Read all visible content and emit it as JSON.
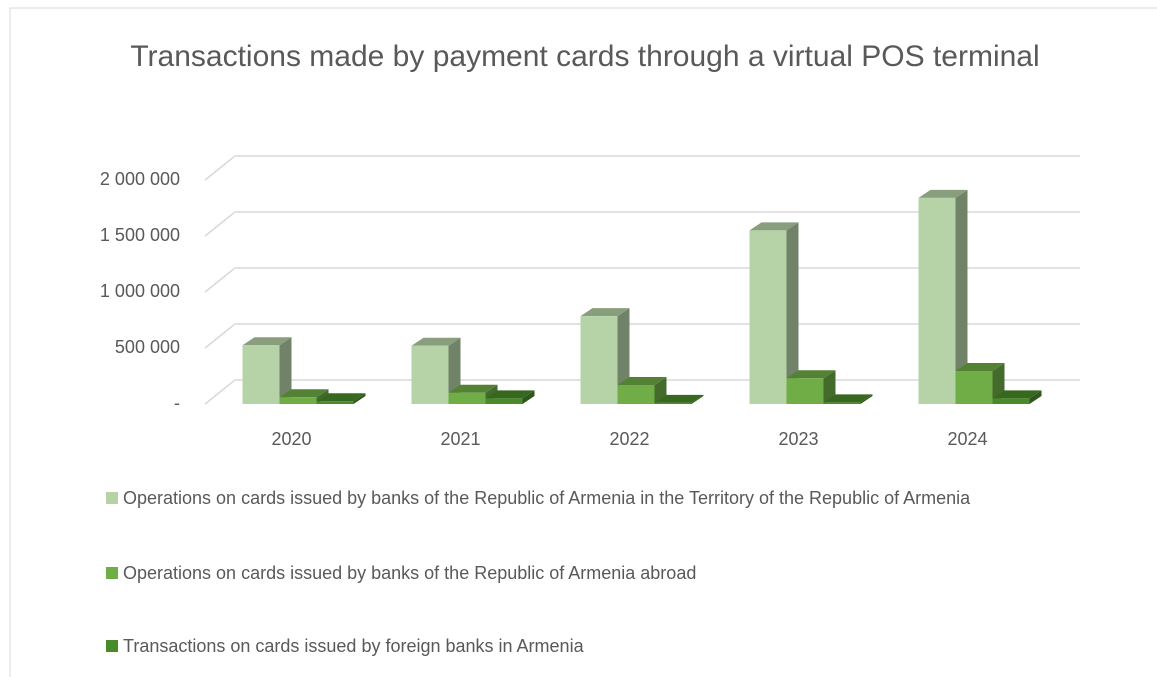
{
  "chart_data": {
    "type": "bar3d",
    "title": "Transactions made by payment cards through a virtual POS terminal",
    "categories": [
      "2020",
      "2021",
      "2022",
      "2023",
      "2024"
    ],
    "series": [
      {
        "name": "Operations on cards issued by banks of the Republic of Armenia in the Territory of the Republic of Armenia",
        "color": "#b5d3a7",
        "values": [
          525000,
          520000,
          785000,
          1550000,
          1840000
        ]
      },
      {
        "name": "Operations on cards issued by banks of the Republic of Armenia abroad",
        "color": "#70ad47",
        "values": [
          60000,
          100000,
          170000,
          230000,
          295000
        ]
      },
      {
        "name": "Transactions on cards issued by foreign banks in Armenia",
        "color": "#4b8a2b",
        "values": [
          25000,
          50000,
          10000,
          15000,
          50000
        ]
      }
    ],
    "ylim": [
      0,
      2000000
    ],
    "yticks": [
      {
        "value": 0,
        "label": "-"
      },
      {
        "value": 500000,
        "label": "500 000"
      },
      {
        "value": 1000000,
        "label": "1 000 000"
      },
      {
        "value": 1500000,
        "label": "1 500 000"
      },
      {
        "value": 2000000,
        "label": "2 000 000"
      }
    ],
    "grid": true
  }
}
